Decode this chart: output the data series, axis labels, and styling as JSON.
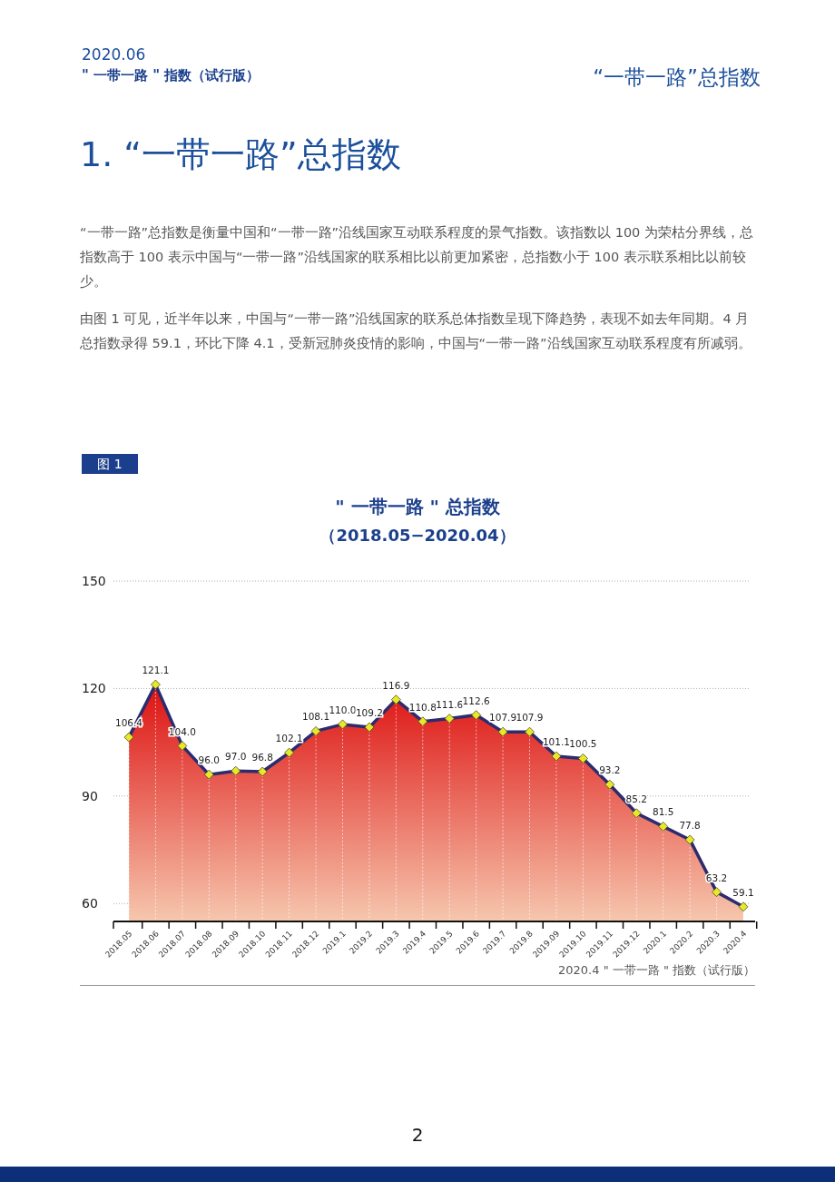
{
  "chart_data": {
    "type": "area",
    "title": "\" 一带一路 \" 总指数",
    "subtitle": "（2018.05−2020.04）",
    "categories": [
      "2018.05",
      "2018.06",
      "2018.07",
      "2018.08",
      "2018.09",
      "2018.10",
      "2018.11",
      "2018.12",
      "2019.1",
      "2019.2",
      "2019.3",
      "2019.4",
      "2019.5",
      "2019.6",
      "2019.7",
      "2019.8",
      "2019.09",
      "2019.10",
      "2019.11",
      "2019.12",
      "2020.1",
      "2020.2",
      "2020.3",
      "2020.4"
    ],
    "series": [
      {
        "color": "#2b2c6e",
        "values": [
          106.4,
          121.1,
          104.0,
          96.0,
          97.0,
          96.8,
          102.1,
          108.1,
          110.0,
          109.2,
          116.9,
          110.8,
          111.6,
          112.6,
          107.9,
          107.9,
          101.1,
          100.5,
          93.2,
          85.2,
          81.5,
          77.8,
          63.2,
          59.1
        ]
      }
    ],
    "ylim": [
      55,
      150
    ],
    "yticks": [
      60,
      90,
      120,
      150
    ],
    "grid": "y",
    "marker": "diamond",
    "value_labels": [
      "106.4",
      "121.1",
      "104.0",
      "96.0",
      "97.0",
      "96.8",
      "102.1",
      "108.1",
      "110.0",
      "109.2",
      "116.9",
      "110.8",
      "111.6",
      "112.6",
      "107.9",
      "107.9",
      "101.1",
      "100.5",
      "93.2",
      "85.2",
      "81.5",
      "77.8",
      "63.2",
      "59.1"
    ],
    "annotations": [
      "2020.06",
      "\" 一带一路 \" 指数（试行版）",
      "“一带一路”总指数",
      "1.  “一带一路”总指数",
      "“一带一路”总指数是衡量中国和“一带一路”沿线国家互动联系程度的景气指数。该指数以 100 为荣枯分界线，总指数高于 100 表示中国与“一带一路”沿线国家的联系相比以前更加紧密，总指数小于 100 表示联系相比以前较少。",
      "由图 1 可见，近半年以来，中国与“一带一路”沿线国家的联系总体指数呈现下降趋势，表现不如去年同期。4 月总指数录得 59.1，环比下降 4.1，受新冠肺炎疫情的影响，中国与“一带一路”沿线国家互动联系程度有所减弱。",
      "图 1",
      "2020.4 \" 一带一路 \" 指数（试行版）",
      "2"
    ]
  }
}
